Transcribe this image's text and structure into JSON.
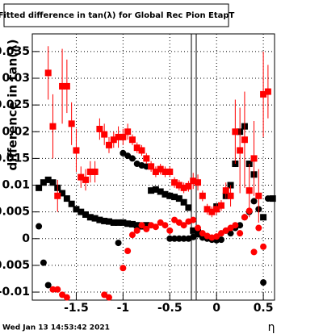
{
  "chart_data": {
    "type": "scatter",
    "title": "Fitted difference in tan(λ) for Global Rec Pion EtapT",
    "y_label": "difference in tan(λ)",
    "x_label": "η",
    "footer": "Wed Jan 13 14:53:42 2021",
    "xlim": [
      -1.97,
      0.62
    ],
    "ylim": [
      -0.0115,
      0.0383
    ],
    "xticks": [
      -1.5,
      -1,
      -0.5,
      0,
      0.5
    ],
    "yticks": [
      -0.01,
      -0.005,
      0,
      0.005,
      0.01,
      0.015,
      0.02,
      0.025,
      0.03,
      0.035
    ],
    "grid": true,
    "series": [
      {
        "color": "#000000",
        "marker": "square",
        "x": [
          -1.9,
          -1.85,
          -1.8,
          -1.75,
          -1.7,
          -1.65,
          -1.6,
          -1.55,
          -1.5,
          -1.45,
          -1.4,
          -1.35,
          -1.3,
          -1.25,
          -1.2,
          -1.15,
          -1.1,
          -1.05,
          -1,
          -0.95,
          -0.9,
          -0.85,
          -0.8,
          -0.75,
          -0.7,
          -0.65,
          -0.6,
          -0.55,
          -0.5,
          -0.45,
          -0.4,
          -0.35,
          -0.3,
          -0.25,
          -0.2,
          0,
          0.1,
          0.15,
          0.2,
          0.25,
          0.3,
          0.35,
          0.4,
          0.5,
          0.6
        ],
        "values": [
          0.0095,
          0.0105,
          0.011,
          0.0105,
          0.0095,
          0.0085,
          0.0075,
          0.0065,
          0.0055,
          0.005,
          0.0045,
          0.004,
          0.0038,
          0.0035,
          0.0033,
          0.0032,
          0.003,
          0.003,
          0.003,
          0.0028,
          0.0027,
          0.0025,
          0.0023,
          0.0025,
          0.009,
          0.0092,
          0.0088,
          0.0083,
          0.008,
          0.0078,
          0.0075,
          0.0068,
          0.0058,
          0.0015,
          0.0012,
          0.006,
          0.008,
          0.01,
          0.014,
          0.02,
          0.021,
          0.014,
          0.012,
          0.004,
          0.0075
        ]
      },
      {
        "color": "#000000",
        "marker": "circle",
        "x": [
          -1.9,
          -1.85,
          -1.8,
          -1.05,
          -1,
          -0.95,
          -0.9,
          -0.85,
          -0.8,
          -0.75,
          -0.5,
          -0.45,
          -0.4,
          -0.35,
          -0.3,
          -0.25,
          -0.2,
          -0.15,
          -0.1,
          -0.05,
          0,
          0.05,
          0.1,
          0.15,
          0.2,
          0.25,
          0.3,
          0.35,
          0.4,
          0.45,
          0.5,
          0.55
        ],
        "values": [
          0.0023,
          -0.0045,
          -0.0087,
          -0.0008,
          0.016,
          0.0155,
          0.015,
          0.014,
          0.0137,
          0.0135,
          0,
          0,
          0,
          0,
          0,
          0.0003,
          0.0008,
          0.0002,
          0,
          -0.0002,
          -0.0003,
          -0.0002,
          0.0015,
          0.001,
          0.002,
          0.0025,
          0.004,
          0.005,
          0.007,
          0.0055,
          -0.0082,
          0.0075
        ]
      },
      {
        "color": "#ff0000",
        "marker": "circle",
        "x": [
          -1.75,
          -1.7,
          -1.65,
          -1.6,
          -1.2,
          -1.15,
          -1,
          -0.95,
          -0.9,
          -0.85,
          -0.8,
          -0.75,
          -0.7,
          -0.65,
          -0.6,
          -0.55,
          -0.5,
          -0.45,
          -0.4,
          -0.35,
          -0.3,
          -0.25,
          -0.2,
          -0.15,
          -0.1,
          -0.05,
          0,
          0.05,
          0.1,
          0.15,
          0.2,
          0.25,
          0.3,
          0.35,
          0.4,
          0.45,
          0.5
        ],
        "values": [
          -0.0095,
          -0.0095,
          -0.0105,
          -0.011,
          -0.0105,
          -0.011,
          -0.0055,
          -0.0023,
          0.0007,
          0.0015,
          0.0025,
          0.0018,
          0.0025,
          0.0022,
          0.003,
          0.0025,
          0.0015,
          0.0035,
          0.003,
          0.0025,
          0.0032,
          0.0035,
          0.002,
          0.001,
          0.0005,
          0.0002,
          0.0004,
          0.001,
          0.0015,
          0.002,
          0.0025,
          0.001,
          0.004,
          0.0052,
          -0.0025,
          0.002,
          -0.0015
        ]
      },
      {
        "color": "#ff0000",
        "marker": "square",
        "x": [
          -1.8,
          -1.75,
          -1.7,
          -1.65,
          -1.6,
          -1.55,
          -1.5,
          -1.45,
          -1.4,
          -1.35,
          -1.3,
          -1.25,
          -1.2,
          -1.15,
          -1.1,
          -1.05,
          -1,
          -0.95,
          -0.9,
          -0.85,
          -0.8,
          -0.75,
          -0.7,
          -0.65,
          -0.6,
          -0.55,
          -0.5,
          -0.45,
          -0.4,
          -0.35,
          -0.3,
          -0.25,
          -0.2,
          -0.15,
          -0.1,
          -0.05,
          0,
          0.05,
          0.1,
          0.15,
          0.2,
          0.25,
          0.3,
          0.35,
          0.4,
          0.45,
          0.5,
          0.55
        ],
        "values": [
          0.031,
          0.021,
          0.008,
          0.0285,
          0.0285,
          0.0215,
          0.0165,
          0.0115,
          0.011,
          0.0125,
          0.0125,
          0.0205,
          0.0195,
          0.0175,
          0.0185,
          0.019,
          0.019,
          0.02,
          0.0185,
          0.017,
          0.0165,
          0.015,
          0.0135,
          0.0125,
          0.013,
          0.0125,
          0.0125,
          0.0105,
          0.01,
          0.0095,
          0.0098,
          0.0108,
          0.0105,
          0.008,
          0.0055,
          0.005,
          0.0055,
          0.0062,
          0.009,
          0.008,
          0.02,
          0.0165,
          0.0185,
          0.009,
          0.015,
          0.008,
          0.027,
          0.0275
        ],
        "errors": [
          0.005,
          0.006,
          0.003,
          0.007,
          0.005,
          0.004,
          0.004,
          0.002,
          0.002,
          0.002,
          0.002,
          0.002,
          0.002,
          0.0015,
          0.0015,
          0.002,
          0.0015,
          0.0015,
          0.001,
          0.001,
          0.001,
          0.001,
          0.001,
          0.001,
          0.001,
          0.001,
          0.001,
          0.001,
          0.001,
          0.001,
          0.001,
          0.0015,
          0.0015,
          0.001,
          0.001,
          0.001,
          0.001,
          0.001,
          0.0015,
          0.002,
          0.006,
          0.008,
          0.009,
          0.005,
          0.007,
          0.005,
          0.008,
          0.005
        ]
      }
    ]
  }
}
